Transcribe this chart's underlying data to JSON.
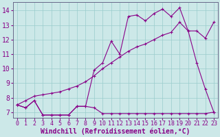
{
  "xlabel": "Windchill (Refroidissement éolien,°C)",
  "background_color": "#cce8e8",
  "line_color": "#880088",
  "xlim": [
    -0.5,
    23.5
  ],
  "ylim": [
    6.6,
    14.6
  ],
  "xticks": [
    0,
    1,
    2,
    3,
    4,
    5,
    6,
    7,
    8,
    9,
    10,
    11,
    12,
    13,
    14,
    15,
    16,
    17,
    18,
    19,
    20,
    21,
    22,
    23
  ],
  "yticks": [
    7,
    8,
    9,
    10,
    11,
    12,
    13,
    14
  ],
  "line1_x": [
    0,
    1,
    2,
    3,
    4,
    5,
    6,
    7,
    8,
    9,
    10,
    11,
    12,
    13,
    14,
    15,
    16,
    17,
    18,
    19,
    20,
    21,
    22,
    23
  ],
  "line1_y": [
    7.5,
    7.3,
    7.8,
    6.8,
    6.8,
    6.8,
    6.8,
    7.4,
    7.4,
    7.3,
    6.9,
    6.9,
    6.9,
    6.9,
    6.9,
    6.9,
    6.9,
    6.9,
    6.9,
    6.9,
    6.9,
    6.9,
    6.9,
    7.0
  ],
  "line2_x": [
    0,
    1,
    2,
    3,
    4,
    5,
    6,
    7,
    8,
    9,
    10,
    11,
    12,
    13,
    14,
    15,
    16,
    17,
    18,
    19,
    20,
    21,
    22,
    23
  ],
  "line2_y": [
    7.5,
    7.3,
    7.8,
    6.8,
    6.8,
    6.8,
    6.8,
    7.4,
    7.4,
    9.9,
    10.4,
    11.9,
    11.0,
    13.6,
    13.7,
    13.3,
    13.8,
    14.1,
    13.6,
    14.2,
    12.6,
    10.4,
    8.6,
    7.0
  ],
  "line3_x": [
    0,
    1,
    2,
    3,
    4,
    5,
    6,
    7,
    8,
    9,
    10,
    11,
    12,
    13,
    14,
    15,
    16,
    17,
    18,
    19,
    20,
    21,
    22,
    23
  ],
  "line3_y": [
    7.5,
    7.8,
    8.1,
    8.2,
    8.3,
    8.4,
    8.6,
    8.8,
    9.1,
    9.5,
    10.0,
    10.4,
    10.8,
    11.2,
    11.5,
    11.7,
    12.0,
    12.3,
    12.5,
    13.2,
    12.6,
    12.6,
    12.1,
    13.2
  ],
  "grid_color": "#99cccc",
  "xlabel_fontsize": 7,
  "tick_fontsize_x": 6,
  "tick_fontsize_y": 7
}
